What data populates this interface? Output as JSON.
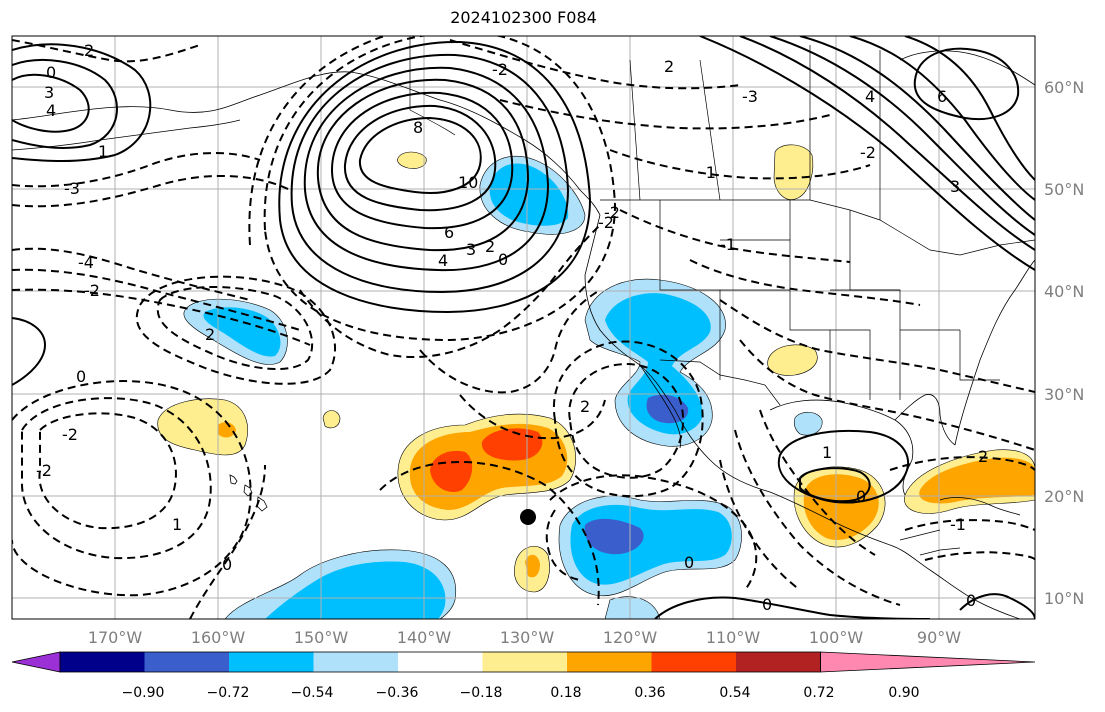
{
  "title": "2024102300 F084",
  "lon_ticks": [
    "170°W",
    "160°W",
    "150°W",
    "140°W",
    "130°W",
    "120°W",
    "110°W",
    "100°W",
    "90°W"
  ],
  "lat_ticks": [
    "60°N",
    "50°N",
    "40°N",
    "30°N",
    "20°N",
    "10°N"
  ],
  "colorbar": {
    "labels": [
      "−0.90",
      "−0.72",
      "−0.54",
      "−0.36",
      "−0.18",
      "0.18",
      "0.36",
      "0.54",
      "0.72",
      "0.90"
    ],
    "colors": [
      "#9b30d6",
      "#00008b",
      "#3a5fcd",
      "#00bfff",
      "#afe1fa",
      "#ffffff",
      "#ffee90",
      "#ffa500",
      "#ff4000",
      "#b22222",
      "#ff88b0"
    ]
  },
  "fill_colors": {
    "light_blue": "#afe1fa",
    "cyan": "#00bfff",
    "royal_blue": "#3a5fcd",
    "light_yellow": "#ffee90",
    "orange": "#ffa500",
    "red_orange": "#ff4000"
  },
  "contour_labels": [
    "3",
    "2",
    "0",
    "4",
    "-3",
    "1",
    "8",
    "10",
    "6",
    "4",
    "3",
    "2",
    "0",
    "-2",
    "4",
    "-4",
    "-2",
    "6",
    "3",
    "2",
    "0",
    "-2",
    "-1",
    "-1",
    "2",
    "0",
    "-2",
    "1",
    "0",
    "1",
    "2",
    "0",
    "-2",
    "0",
    "-1",
    "0",
    "-3",
    "-2",
    "-2",
    "2"
  ],
  "marker": "black-dot"
}
